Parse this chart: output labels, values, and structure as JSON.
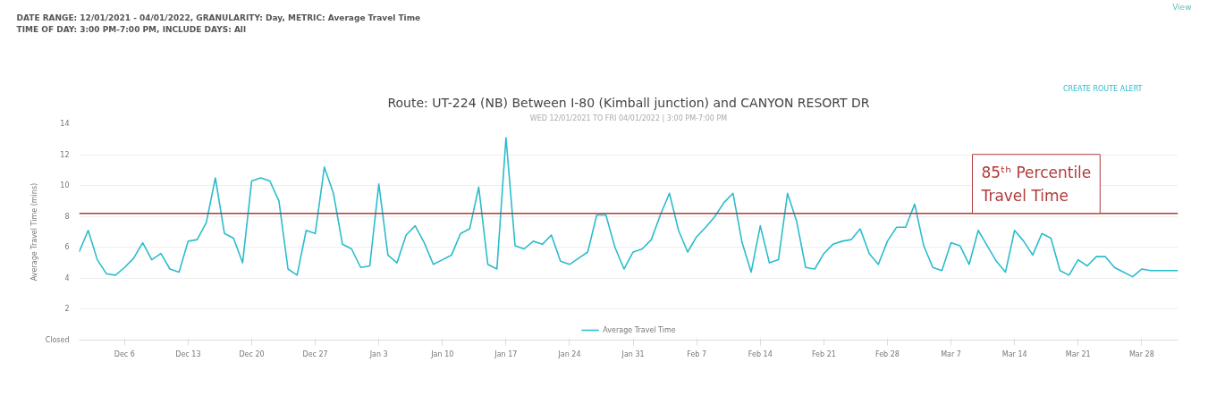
{
  "chart_data": {
    "type": "line",
    "title": "Route: UT-224 (NB) Between I-80 (Kimball junction) and CANYON RESORT DR",
    "subtitle": "WED 12/01/2021 TO FRI 04/01/2022 | 3:00 PM-7:00 PM",
    "ylabel": "Average Travel Time (mins)",
    "annotations": [
      "DATE RANGE: 12/01/2021 - 04/01/2022, GRANULARITY: Day, METRIC: Average Travel Time",
      "TIME OF DAY: 3:00 PM-7:00 PM, INCLUDE DAYS: All",
      "CREATE ROUTE ALERT",
      "View"
    ],
    "x": [
      "2021-12-01",
      "2021-12-02",
      "2021-12-03",
      "2021-12-04",
      "2021-12-05",
      "2021-12-06",
      "2021-12-07",
      "2021-12-08",
      "2021-12-09",
      "2021-12-10",
      "2021-12-11",
      "2021-12-12",
      "2021-12-13",
      "2021-12-14",
      "2021-12-15",
      "2021-12-16",
      "2021-12-17",
      "2021-12-18",
      "2021-12-19",
      "2021-12-20",
      "2021-12-21",
      "2021-12-22",
      "2021-12-23",
      "2021-12-24",
      "2021-12-25",
      "2021-12-26",
      "2021-12-27",
      "2021-12-28",
      "2021-12-29",
      "2021-12-30",
      "2021-12-31",
      "2022-01-01",
      "2022-01-02",
      "2022-01-03",
      "2022-01-04",
      "2022-01-05",
      "2022-01-06",
      "2022-01-07",
      "2022-01-08",
      "2022-01-09",
      "2022-01-10",
      "2022-01-11",
      "2022-01-12",
      "2022-01-13",
      "2022-01-14",
      "2022-01-15",
      "2022-01-16",
      "2022-01-17",
      "2022-01-18",
      "2022-01-19",
      "2022-01-20",
      "2022-01-21",
      "2022-01-22",
      "2022-01-23",
      "2022-01-24",
      "2022-01-25",
      "2022-01-26",
      "2022-01-27",
      "2022-01-28",
      "2022-01-29",
      "2022-01-30",
      "2022-01-31",
      "2022-02-01",
      "2022-02-02",
      "2022-02-03",
      "2022-02-04",
      "2022-02-05",
      "2022-02-06",
      "2022-02-07",
      "2022-02-08",
      "2022-02-09",
      "2022-02-10",
      "2022-02-11",
      "2022-02-12",
      "2022-02-13",
      "2022-02-14",
      "2022-02-15",
      "2022-02-16",
      "2022-02-17",
      "2022-02-18",
      "2022-02-19",
      "2022-02-20",
      "2022-02-21",
      "2022-02-22",
      "2022-02-23",
      "2022-02-24",
      "2022-02-25",
      "2022-02-26",
      "2022-02-27",
      "2022-02-28",
      "2022-03-01",
      "2022-03-02",
      "2022-03-03",
      "2022-03-04",
      "2022-03-05",
      "2022-03-06",
      "2022-03-07",
      "2022-03-08",
      "2022-03-09",
      "2022-03-10",
      "2022-03-11",
      "2022-03-12",
      "2022-03-13",
      "2022-03-14",
      "2022-03-15",
      "2022-03-16",
      "2022-03-17",
      "2022-03-18",
      "2022-03-19",
      "2022-03-20",
      "2022-03-21",
      "2022-03-22",
      "2022-03-23",
      "2022-03-24",
      "2022-03-25",
      "2022-03-26",
      "2022-03-27",
      "2022-03-28",
      "2022-03-29",
      "2022-03-30",
      "2022-03-31",
      "2022-04-01"
    ],
    "series": [
      {
        "name": "Average Travel Time",
        "color": "#2bbccc",
        "values": [
          5.7,
          7.1,
          5.2,
          4.3,
          4.2,
          4.7,
          5.3,
          6.3,
          5.2,
          5.6,
          4.6,
          4.4,
          6.4,
          6.5,
          7.6,
          10.5,
          6.9,
          6.6,
          5.0,
          10.3,
          10.5,
          10.3,
          9.0,
          4.6,
          4.2,
          7.1,
          6.9,
          11.2,
          9.5,
          6.2,
          5.9,
          4.7,
          4.8,
          10.1,
          5.5,
          5.0,
          6.8,
          7.4,
          6.3,
          4.9,
          5.2,
          5.5,
          6.9,
          7.2,
          9.9,
          4.9,
          4.6,
          13.1,
          6.1,
          5.9,
          6.4,
          6.2,
          6.8,
          5.1,
          4.9,
          5.3,
          5.7,
          8.1,
          8.1,
          6.0,
          4.6,
          5.7,
          5.9,
          6.5,
          8.1,
          9.5,
          7.1,
          5.7,
          6.7,
          7.3,
          8.0,
          8.9,
          9.5,
          6.3,
          4.4,
          7.4,
          5.0,
          5.2,
          9.5,
          7.7,
          4.7,
          4.6,
          5.6,
          6.2,
          6.4,
          6.5,
          7.2,
          5.6,
          4.9,
          6.4,
          7.3,
          7.3,
          8.8,
          6.1,
          4.7,
          4.5,
          6.3,
          6.1,
          4.9,
          7.1,
          6.1,
          5.1,
          4.4,
          7.1,
          6.4,
          5.5,
          6.9,
          6.6,
          4.5,
          4.2,
          5.2,
          4.8,
          5.4,
          5.4,
          4.7,
          4.4,
          4.1,
          4.6,
          4.5,
          4.5,
          4.5,
          4.5
        ]
      }
    ],
    "xlim": [
      "2021-12-01",
      "2022-04-01"
    ],
    "xticks": [
      {
        "value": "2021-12-06",
        "label": "Dec 6"
      },
      {
        "value": "2021-12-13",
        "label": "Dec 13"
      },
      {
        "value": "2021-12-20",
        "label": "Dec 20"
      },
      {
        "value": "2021-12-27",
        "label": "Dec 27"
      },
      {
        "value": "2022-01-03",
        "label": "Jan 3"
      },
      {
        "value": "2022-01-10",
        "label": "Jan 10"
      },
      {
        "value": "2022-01-17",
        "label": "Jan 17"
      },
      {
        "value": "2022-01-24",
        "label": "Jan 24"
      },
      {
        "value": "2022-01-31",
        "label": "Jan 31"
      },
      {
        "value": "2022-02-07",
        "label": "Feb 7"
      },
      {
        "value": "2022-02-14",
        "label": "Feb 14"
      },
      {
        "value": "2022-02-21",
        "label": "Feb 21"
      },
      {
        "value": "2022-02-28",
        "label": "Feb 28"
      },
      {
        "value": "2022-03-07",
        "label": "Mar 7"
      },
      {
        "value": "2022-03-14",
        "label": "Mar 14"
      },
      {
        "value": "2022-03-21",
        "label": "Mar 21"
      },
      {
        "value": "2022-03-28",
        "label": "Mar 28"
      }
    ],
    "ylim": [
      0,
      14
    ],
    "yticks": [
      {
        "value": 0,
        "label": "Closed"
      },
      2,
      4,
      6,
      8,
      10,
      12,
      14
    ],
    "ref_lines": [
      {
        "axis": "y",
        "value": 8.2,
        "label": "85ᵗʰ Percentile Travel Time",
        "color": "#b03a3a"
      }
    ],
    "grid": "y",
    "legend": "bottom",
    "marker": "none",
    "line_style": "solid"
  }
}
